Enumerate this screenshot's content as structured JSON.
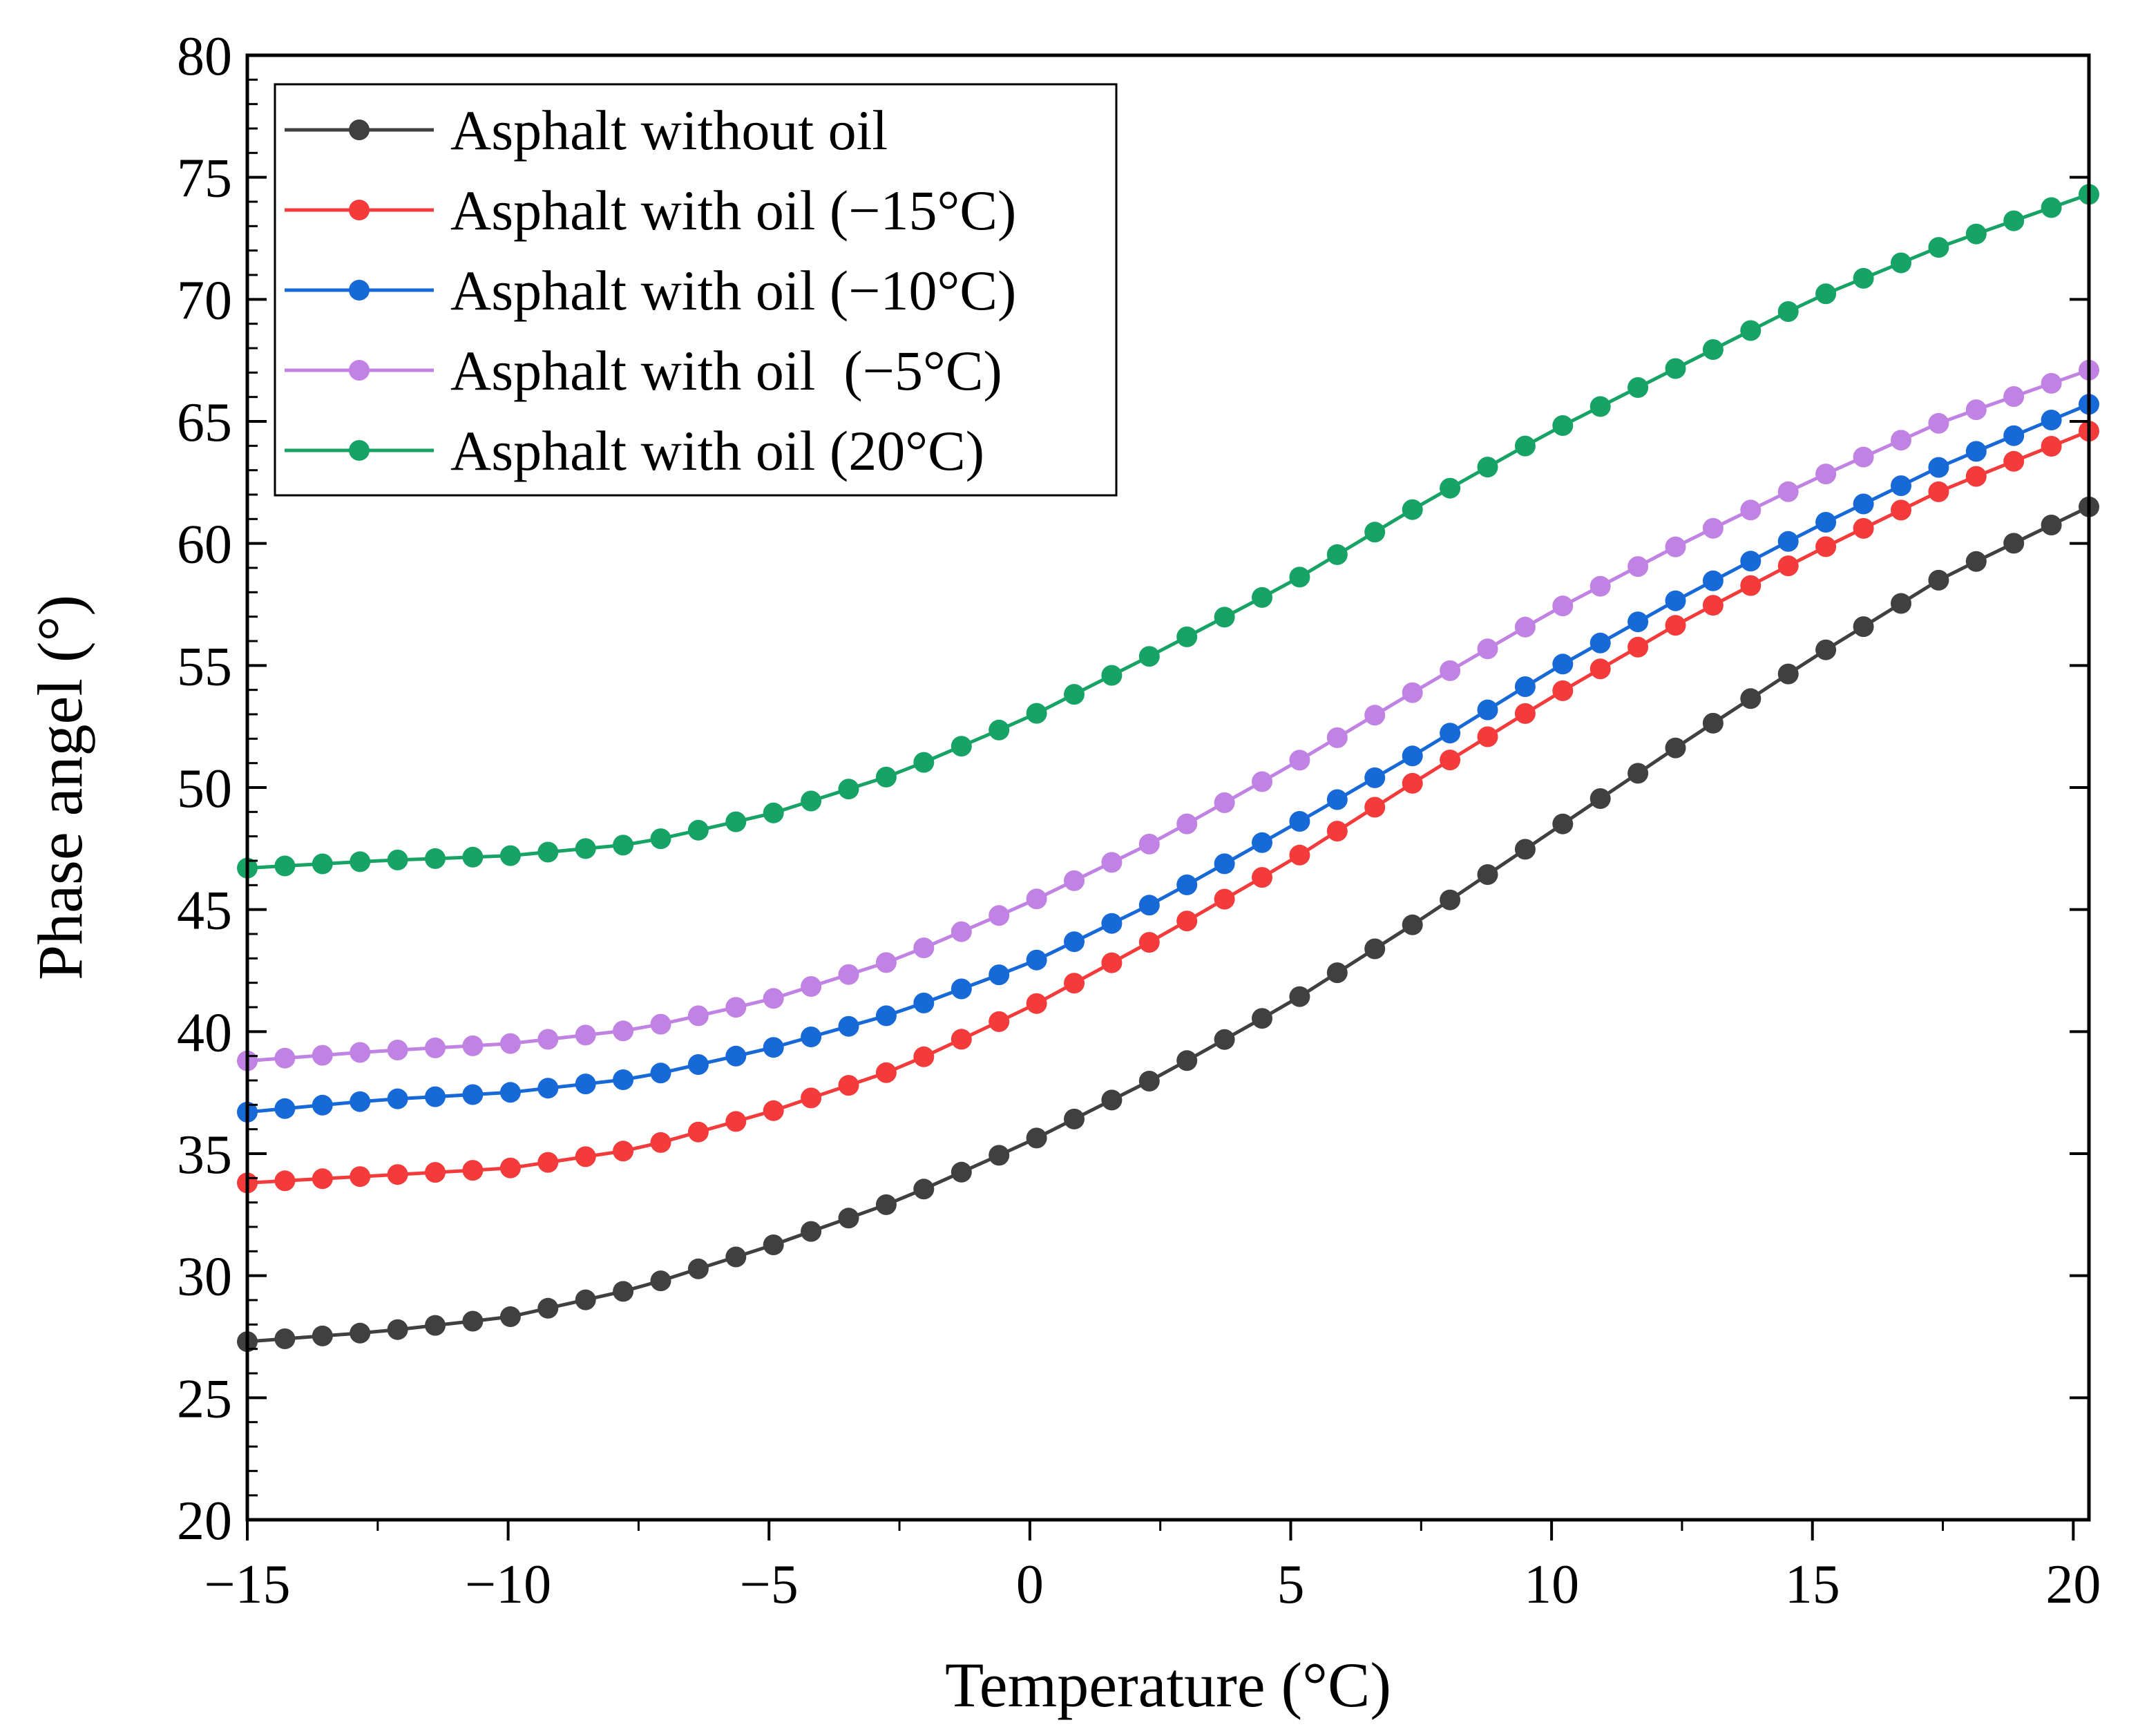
{
  "chart_data": {
    "type": "line",
    "title": "",
    "xlabel": "Temperature (°C)",
    "ylabel": "Phase angel (°)",
    "xlim": [
      -15,
      20.3
    ],
    "ylim": [
      20,
      80
    ],
    "xticks": [
      -15,
      -10,
      -5,
      0,
      5,
      10,
      15,
      20
    ],
    "xtick_labels": [
      "−15",
      "−10",
      "−5",
      "0",
      "5",
      "10",
      "15",
      "20"
    ],
    "yticks": [
      20,
      25,
      30,
      35,
      40,
      45,
      50,
      55,
      60,
      65,
      70,
      75,
      80
    ],
    "ytick_labels": [
      "20",
      "25",
      "30",
      "35",
      "40",
      "45",
      "50",
      "55",
      "60",
      "65",
      "70",
      "75",
      "80"
    ],
    "grid": false,
    "legend_position": "top-left",
    "x_start": -15,
    "x_end": 20.3,
    "points_per_series": 50,
    "series": [
      {
        "name": "Asphalt without oil",
        "color": "#404040",
        "anchors": [
          [
            -15,
            27.3
          ],
          [
            -12.5,
            27.7
          ],
          [
            -10,
            28.3
          ],
          [
            -7.5,
            29.5
          ],
          [
            -5,
            31.2
          ],
          [
            -2.5,
            33.1
          ],
          [
            0,
            35.5
          ],
          [
            2.5,
            38.2
          ],
          [
            5,
            41.2
          ],
          [
            7.5,
            44.6
          ],
          [
            10,
            48.2
          ],
          [
            12.5,
            51.8
          ],
          [
            15,
            55.3
          ],
          [
            17.5,
            58.6
          ],
          [
            20.3,
            61.5
          ]
        ]
      },
      {
        "name": "Asphalt with oil (−15°C)",
        "color": "#f33b3b",
        "anchors": [
          [
            -15,
            33.8
          ],
          [
            -12.5,
            34.1
          ],
          [
            -10,
            34.4
          ],
          [
            -7.5,
            35.2
          ],
          [
            -5,
            36.7
          ],
          [
            -2.5,
            38.5
          ],
          [
            0,
            41.0
          ],
          [
            2.5,
            43.9
          ],
          [
            5,
            47.0
          ],
          [
            7.5,
            50.4
          ],
          [
            10,
            53.7
          ],
          [
            12.5,
            56.8
          ],
          [
            15,
            59.6
          ],
          [
            17.5,
            62.2
          ],
          [
            20.3,
            64.6
          ]
        ]
      },
      {
        "name": "Asphalt with oil (−10°C)",
        "color": "#1769d8",
        "anchors": [
          [
            -15,
            36.7
          ],
          [
            -12.5,
            37.2
          ],
          [
            -10,
            37.5
          ],
          [
            -7.5,
            38.1
          ],
          [
            -5,
            39.3
          ],
          [
            -2.5,
            40.8
          ],
          [
            0,
            42.8
          ],
          [
            2.5,
            45.4
          ],
          [
            5,
            48.4
          ],
          [
            7.5,
            51.5
          ],
          [
            10,
            54.8
          ],
          [
            12.5,
            57.8
          ],
          [
            15,
            60.6
          ],
          [
            17.5,
            63.2
          ],
          [
            20.3,
            65.7
          ]
        ]
      },
      {
        "name": "Asphalt with oil  (−5°C)",
        "color": "#c083e3",
        "anchors": [
          [
            -15,
            38.8
          ],
          [
            -12.5,
            39.2
          ],
          [
            -10,
            39.5
          ],
          [
            -7.5,
            40.1
          ],
          [
            -5,
            41.3
          ],
          [
            -2.5,
            43.0
          ],
          [
            0,
            45.3
          ],
          [
            2.5,
            47.9
          ],
          [
            5,
            50.9
          ],
          [
            7.5,
            54.1
          ],
          [
            10,
            57.2
          ],
          [
            12.5,
            60.0
          ],
          [
            15,
            62.6
          ],
          [
            17.5,
            65.0
          ],
          [
            20.3,
            67.1
          ]
        ]
      },
      {
        "name": "Asphalt with oil (20°C)",
        "color": "#17a366",
        "anchors": [
          [
            -15,
            46.7
          ],
          [
            -12.5,
            47.0
          ],
          [
            -10,
            47.2
          ],
          [
            -7.5,
            47.7
          ],
          [
            -5,
            48.9
          ],
          [
            -2.5,
            50.6
          ],
          [
            0,
            52.9
          ],
          [
            2.5,
            55.6
          ],
          [
            5,
            58.4
          ],
          [
            7.5,
            61.6
          ],
          [
            10,
            64.6
          ],
          [
            12.5,
            67.3
          ],
          [
            15,
            70.0
          ],
          [
            17.5,
            72.2
          ],
          [
            20.3,
            74.3
          ]
        ]
      }
    ]
  }
}
